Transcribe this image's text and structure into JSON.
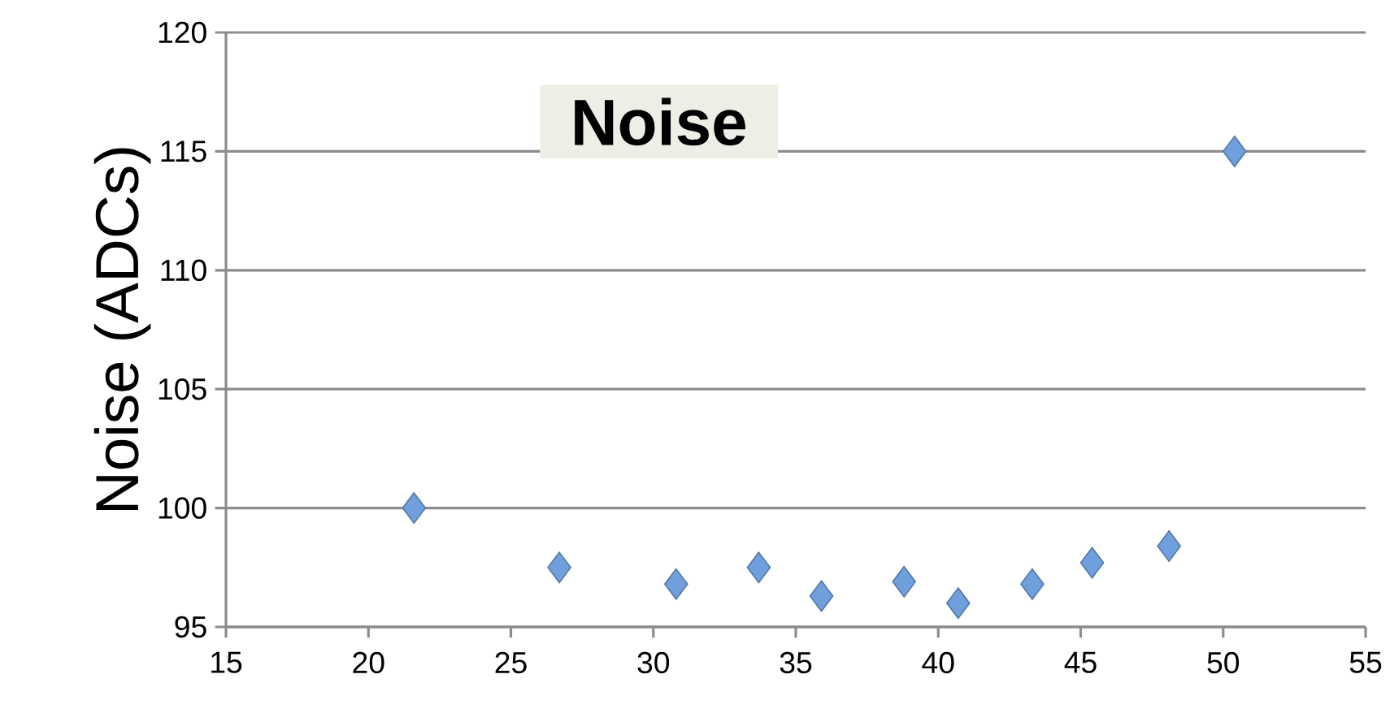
{
  "chart_data": {
    "type": "scatter",
    "title": "Noise",
    "ylabel": "Noise (ADCs)",
    "x": [
      21.6,
      26.7,
      30.8,
      33.7,
      35.9,
      38.8,
      40.7,
      43.3,
      45.4,
      48.1,
      50.4
    ],
    "series": [
      {
        "color": "#6f9fdc",
        "values": [
          100,
          97.5,
          96.8,
          97.5,
          96.3,
          96.9,
          96.0,
          96.8,
          97.7,
          98.4,
          115.0
        ]
      }
    ],
    "xlim": [
      15,
      55
    ],
    "ylim": [
      95,
      120
    ],
    "xticks": [
      15,
      20,
      25,
      30,
      35,
      40,
      45,
      50,
      55
    ],
    "yticks": [
      95,
      100,
      105,
      110,
      115,
      120
    ],
    "grid": "y",
    "marker": "diamond"
  }
}
